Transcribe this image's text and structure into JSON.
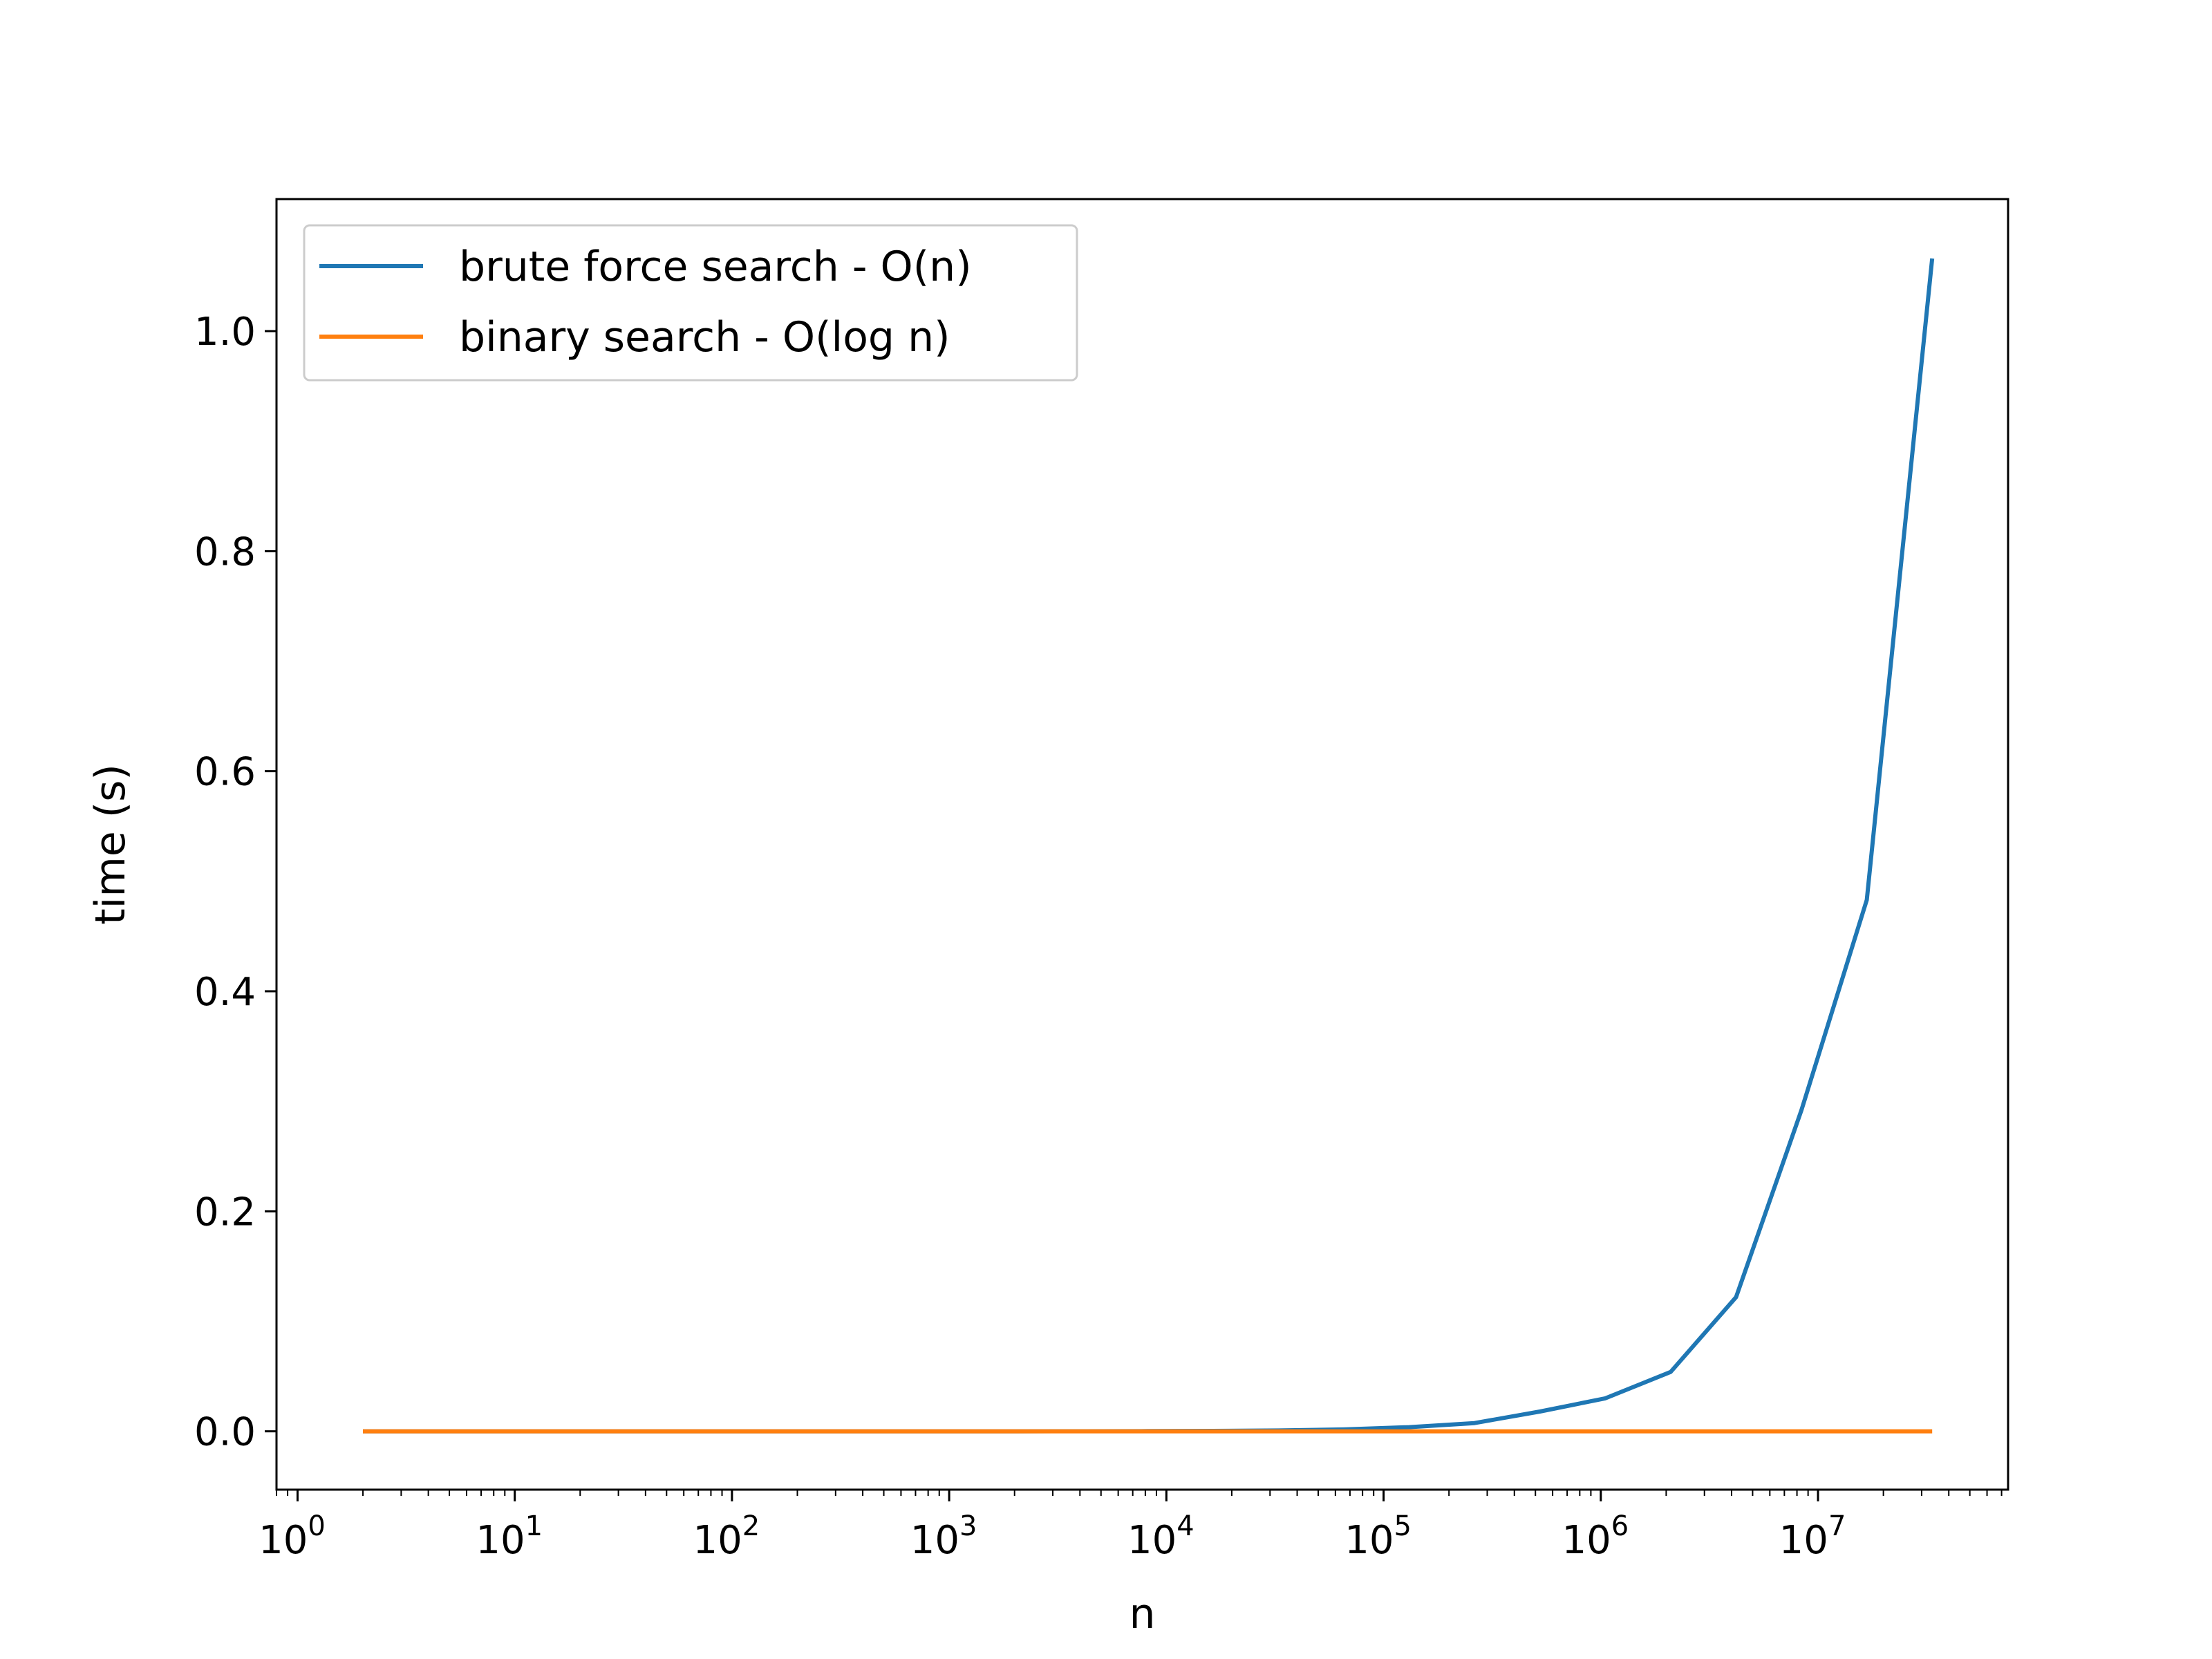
{
  "chart_data": {
    "type": "line",
    "xscale": "log",
    "xlabel": "n",
    "ylabel": "time (s)",
    "xlim": [
      0.8,
      75000000
    ],
    "ylim": [
      -0.053,
      1.12
    ],
    "grid": false,
    "legend_position": "top-left",
    "x": [
      2,
      4,
      8,
      16,
      32,
      64,
      128,
      256,
      512,
      1024,
      2048,
      4096,
      8192,
      16384,
      32768,
      65536,
      131072,
      262144,
      524288,
      1048576,
      2097152,
      4194304,
      8388608,
      16777216,
      33554432
    ],
    "series": [
      {
        "name": "brute force search - O(n)",
        "color": "#1f77b4",
        "values": [
          0,
          0,
          0,
          0,
          0,
          0,
          0,
          0,
          0,
          0,
          0,
          0.0001,
          0.0002,
          0.0004,
          0.0008,
          0.0017,
          0.0038,
          0.0075,
          0.018,
          0.03,
          0.054,
          0.122,
          0.292,
          0.483,
          1.066
        ]
      },
      {
        "name": "binary search - O(log n)",
        "color": "#ff7f0e",
        "values": [
          0,
          0,
          0,
          0,
          0,
          0,
          0,
          0,
          0,
          0,
          0,
          0,
          0,
          0,
          0,
          0,
          0,
          0,
          0,
          0,
          0,
          0,
          0,
          0,
          0
        ]
      }
    ],
    "y_ticks": [
      {
        "value": 0.0,
        "label": "0.0"
      },
      {
        "value": 0.2,
        "label": "0.2"
      },
      {
        "value": 0.4,
        "label": "0.4"
      },
      {
        "value": 0.6,
        "label": "0.6"
      },
      {
        "value": 0.8,
        "label": "0.8"
      },
      {
        "value": 1.0,
        "label": "1.0"
      }
    ],
    "x_ticks": [
      {
        "exp": 0,
        "base": "10",
        "sup": "0"
      },
      {
        "exp": 1,
        "base": "10",
        "sup": "1"
      },
      {
        "exp": 2,
        "base": "10",
        "sup": "2"
      },
      {
        "exp": 3,
        "base": "10",
        "sup": "3"
      },
      {
        "exp": 4,
        "base": "10",
        "sup": "4"
      },
      {
        "exp": 5,
        "base": "10",
        "sup": "5"
      },
      {
        "exp": 6,
        "base": "10",
        "sup": "6"
      },
      {
        "exp": 7,
        "base": "10",
        "sup": "7"
      }
    ]
  }
}
